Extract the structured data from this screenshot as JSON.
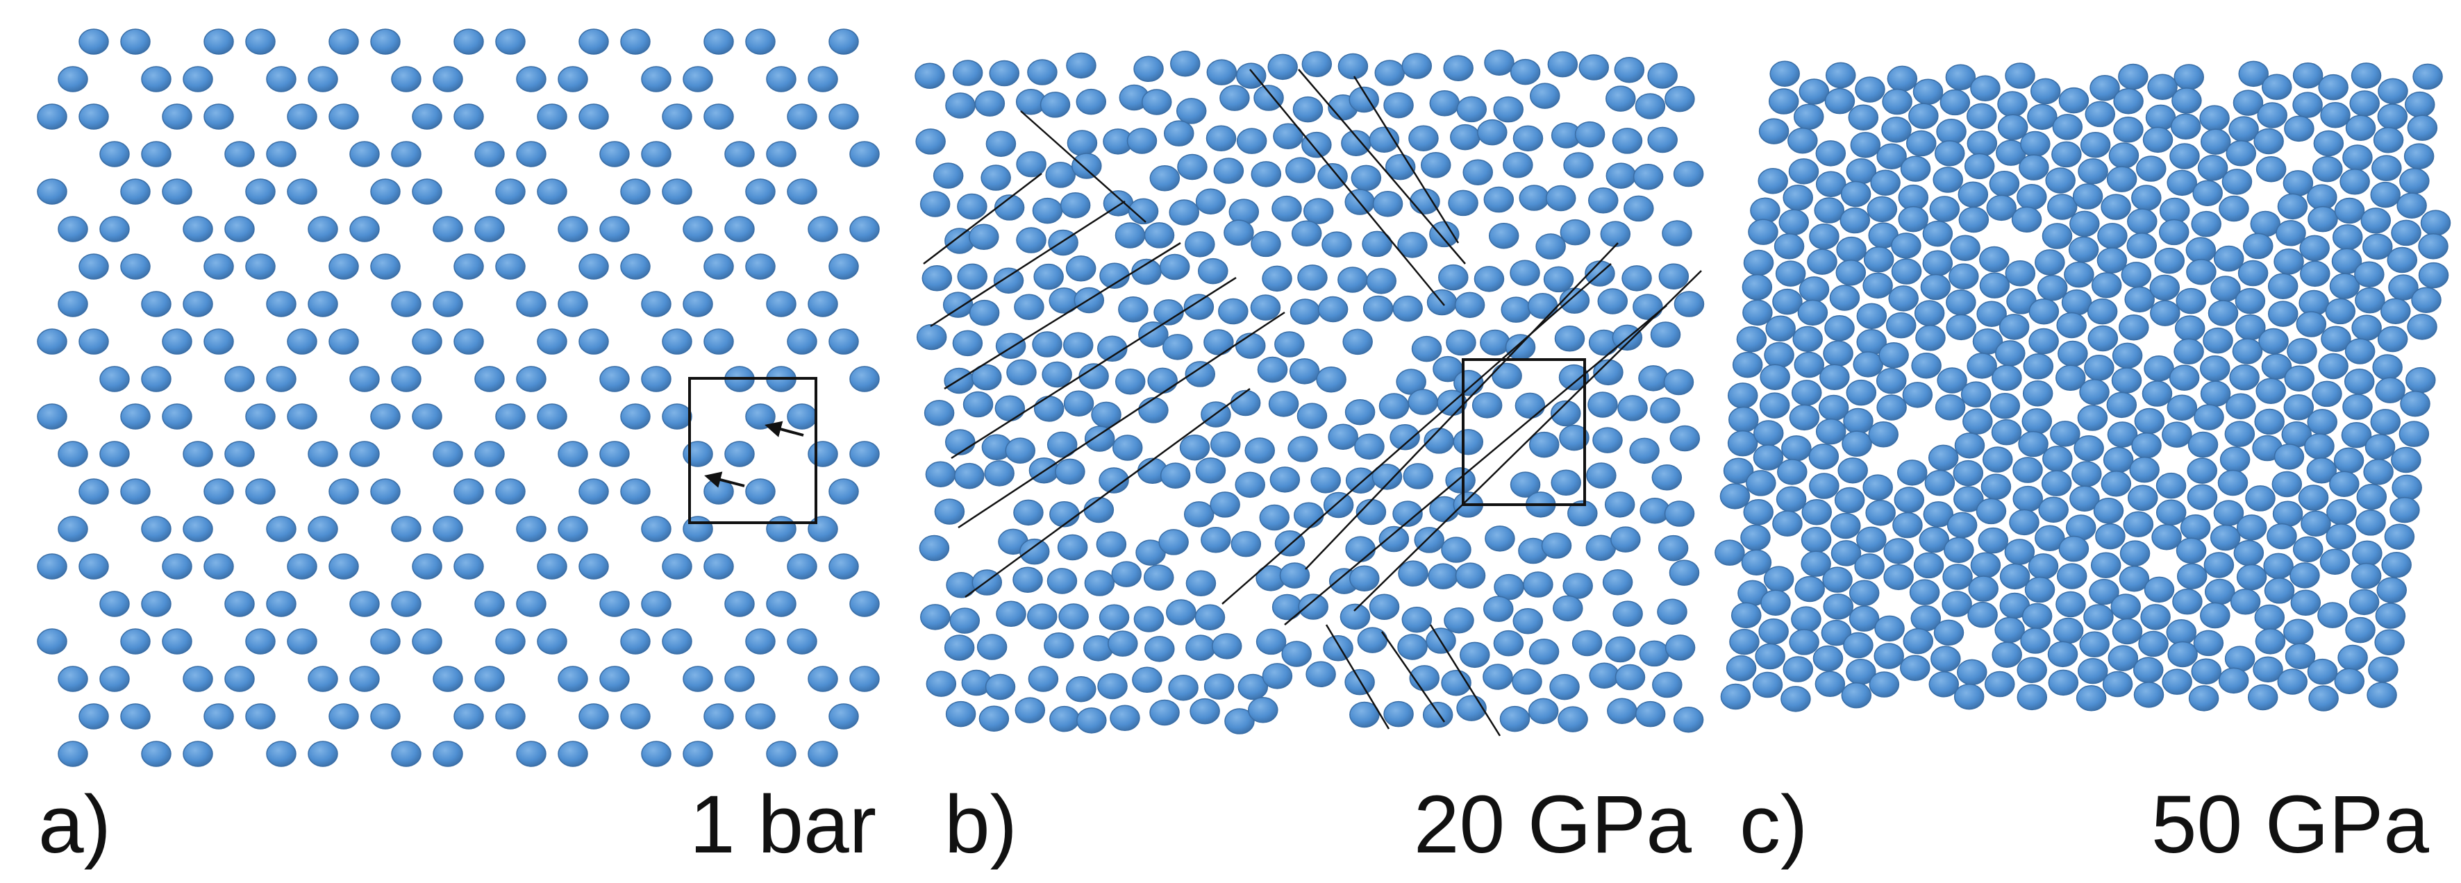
{
  "figure": {
    "panels": [
      {
        "id": "a",
        "letter": "a)",
        "condition": "1 bar"
      },
      {
        "id": "b",
        "letter": "b)",
        "condition": "20 GPa"
      },
      {
        "id": "c",
        "letter": "c)",
        "condition": "50 GPa"
      }
    ],
    "colors": {
      "atom": "#4f8fd2",
      "atom_edge": "#3a6ea6",
      "highlight": "#7fb3e6",
      "ink": "#111111"
    }
  }
}
